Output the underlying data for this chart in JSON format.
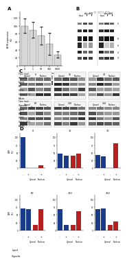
{
  "panel_A": {
    "bars": [
      100,
      90,
      75,
      55,
      28
    ],
    "errors": [
      18,
      20,
      22,
      28,
      8
    ],
    "xlabels": [
      "0",
      "1",
      "10",
      "100",
      "1000"
    ],
    "ylabel": "AHR expression\n(%)",
    "xlabel": "Ligand duration (time course)",
    "bar_color": "#d8d8d8",
    "ylim": [
      0,
      135
    ]
  },
  "panel_B": {
    "note": "gel image placeholder, light gray background"
  },
  "panel_C": {
    "rows_top": [
      "AhR",
      "HSP90",
      "Histone H3.1",
      "B-Actin"
    ],
    "rows_bot": [
      "AhR",
      "HSP90",
      "Histone H3.1",
      "B-Actin"
    ],
    "time_top": [
      "0",
      "15",
      "30"
    ],
    "time_bot": [
      "60",
      "120",
      "360"
    ]
  },
  "panel_D": {
    "blue_color": "#1a3a8a",
    "red_color": "#b52020",
    "time_labels": [
      "0",
      "15",
      "30",
      "60",
      "120",
      "360"
    ],
    "data": [
      [
        100,
        2,
        2,
        10
      ],
      [
        48,
        42,
        42,
        48
      ],
      [
        44,
        38,
        2,
        82
      ],
      [
        72,
        68,
        18,
        68
      ],
      [
        68,
        18,
        18,
        62
      ],
      [
        68,
        72,
        18,
        28
      ]
    ]
  },
  "bg_color": "#ffffff"
}
